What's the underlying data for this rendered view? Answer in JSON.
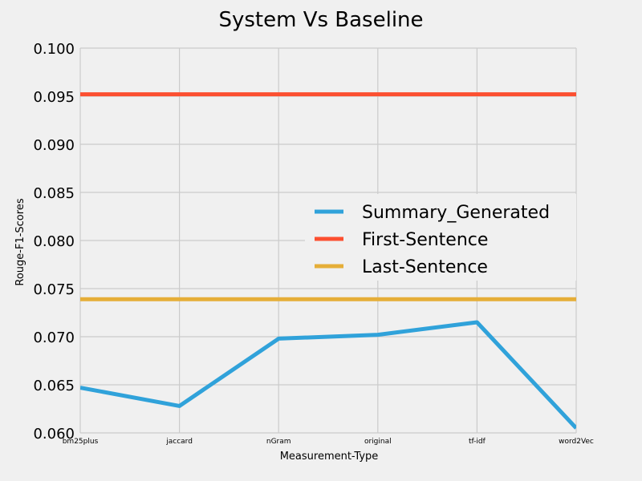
{
  "chart_data": {
    "type": "line",
    "title": "System Vs Baseline",
    "xlabel": "Measurement-Type",
    "ylabel": "Rouge-F1-Scores",
    "categories": [
      "bm25plus",
      "jaccard",
      "nGram",
      "original",
      "tf-idf",
      "word2Vec"
    ],
    "ylim": [
      0.06,
      0.1
    ],
    "yticks": [
      "0.060",
      "0.065",
      "0.070",
      "0.075",
      "0.080",
      "0.085",
      "0.090",
      "0.095",
      "0.100"
    ],
    "grid": true,
    "legend_position": "center-right",
    "series": [
      {
        "name": "Summary_Generated",
        "color": "#30a2da",
        "values": [
          0.0647,
          0.0628,
          0.0698,
          0.0702,
          0.0715,
          0.0605
        ]
      },
      {
        "name": "First-Sentence",
        "color": "#fc4f30",
        "values": [
          0.0952,
          0.0952,
          0.0952,
          0.0952,
          0.0952,
          0.0952
        ]
      },
      {
        "name": "Last-Sentence",
        "color": "#e5ae38",
        "values": [
          0.0739,
          0.0739,
          0.0739,
          0.0739,
          0.0739,
          0.0739
        ]
      }
    ]
  }
}
